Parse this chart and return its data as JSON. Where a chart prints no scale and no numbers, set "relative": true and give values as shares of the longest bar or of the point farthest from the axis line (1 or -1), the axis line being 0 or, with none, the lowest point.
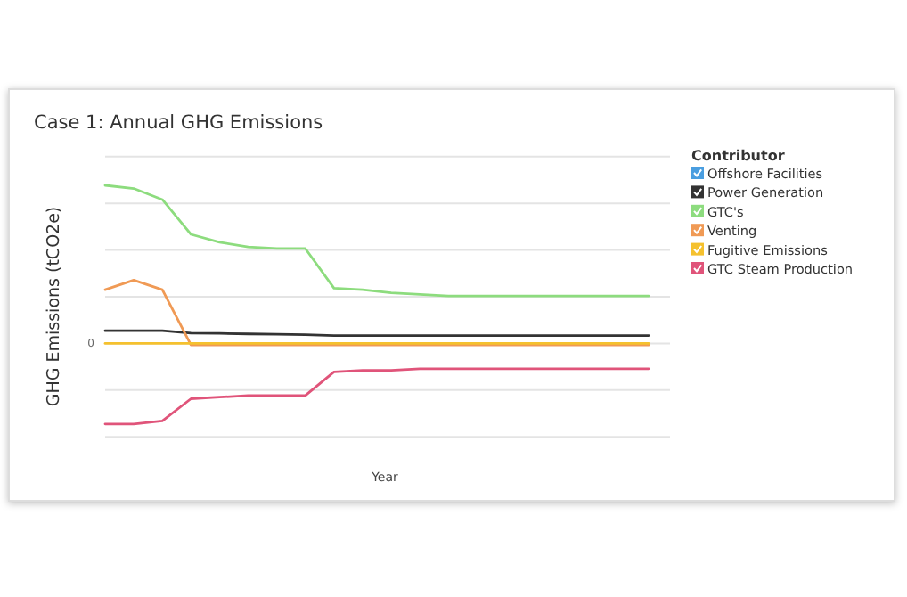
{
  "chart_data": {
    "type": "line",
    "title": "Case 1: Annual GHG Emissions",
    "xlabel": "Year",
    "ylabel": "GHG Emissions (tCO2e)",
    "legend_title": "Contributor",
    "categories": [
      null,
      null,
      null,
      null,
      null,
      null,
      null,
      null,
      null,
      null,
      null,
      null,
      null,
      null,
      null,
      null,
      null,
      null,
      null,
      null
    ],
    "relative": true,
    "annotations": [
      "0"
    ],
    "grid": "y",
    "legend": "right",
    "marker": "none",
    "line_style": "solid",
    "series": [
      {
        "name": "Offshore Facilities",
        "color": "#4a9ee0",
        "values": [
          null,
          null,
          null,
          null,
          null,
          null,
          null,
          null,
          null,
          null,
          null,
          null,
          null,
          null,
          null,
          null,
          null,
          null,
          null,
          null
        ]
      },
      {
        "name": "Power Generation",
        "color": "#333333",
        "values": [
          0.08,
          0.08,
          0.08,
          0.065,
          0.063,
          0.06,
          0.058,
          0.055,
          0.05,
          0.05,
          0.05,
          0.05,
          0.05,
          0.05,
          0.05,
          0.05,
          0.05,
          0.05,
          0.05,
          0.05
        ]
      },
      {
        "name": "GTC's",
        "color": "#8ddc7e",
        "values": [
          1.0,
          0.98,
          0.91,
          0.69,
          0.64,
          0.61,
          0.6,
          0.6,
          0.35,
          0.34,
          0.32,
          0.31,
          0.3,
          0.3,
          0.3,
          0.3,
          0.3,
          0.3,
          0.3,
          0.3
        ]
      },
      {
        "name": "Venting",
        "color": "#f09a55",
        "values": [
          0.34,
          0.4,
          0.34,
          -0.01,
          -0.01,
          -0.01,
          -0.01,
          -0.01,
          -0.01,
          -0.01,
          -0.01,
          -0.01,
          -0.01,
          -0.01,
          -0.01,
          -0.01,
          -0.01,
          -0.01,
          -0.01,
          -0.01
        ]
      },
      {
        "name": "Fugitive Emissions",
        "color": "#f5c12e",
        "values": [
          0,
          0,
          0,
          0,
          0,
          0,
          0,
          0,
          0,
          0,
          0,
          0,
          0,
          0,
          0,
          0,
          0,
          0,
          0,
          0
        ]
      },
      {
        "name": "GTC Steam Production",
        "color": "#e0547a",
        "values": [
          -0.51,
          -0.51,
          -0.49,
          -0.35,
          -0.34,
          -0.33,
          -0.33,
          -0.33,
          -0.18,
          -0.17,
          -0.17,
          -0.16,
          -0.16,
          -0.16,
          -0.16,
          -0.16,
          -0.16,
          -0.16,
          -0.16,
          -0.16
        ]
      }
    ]
  }
}
